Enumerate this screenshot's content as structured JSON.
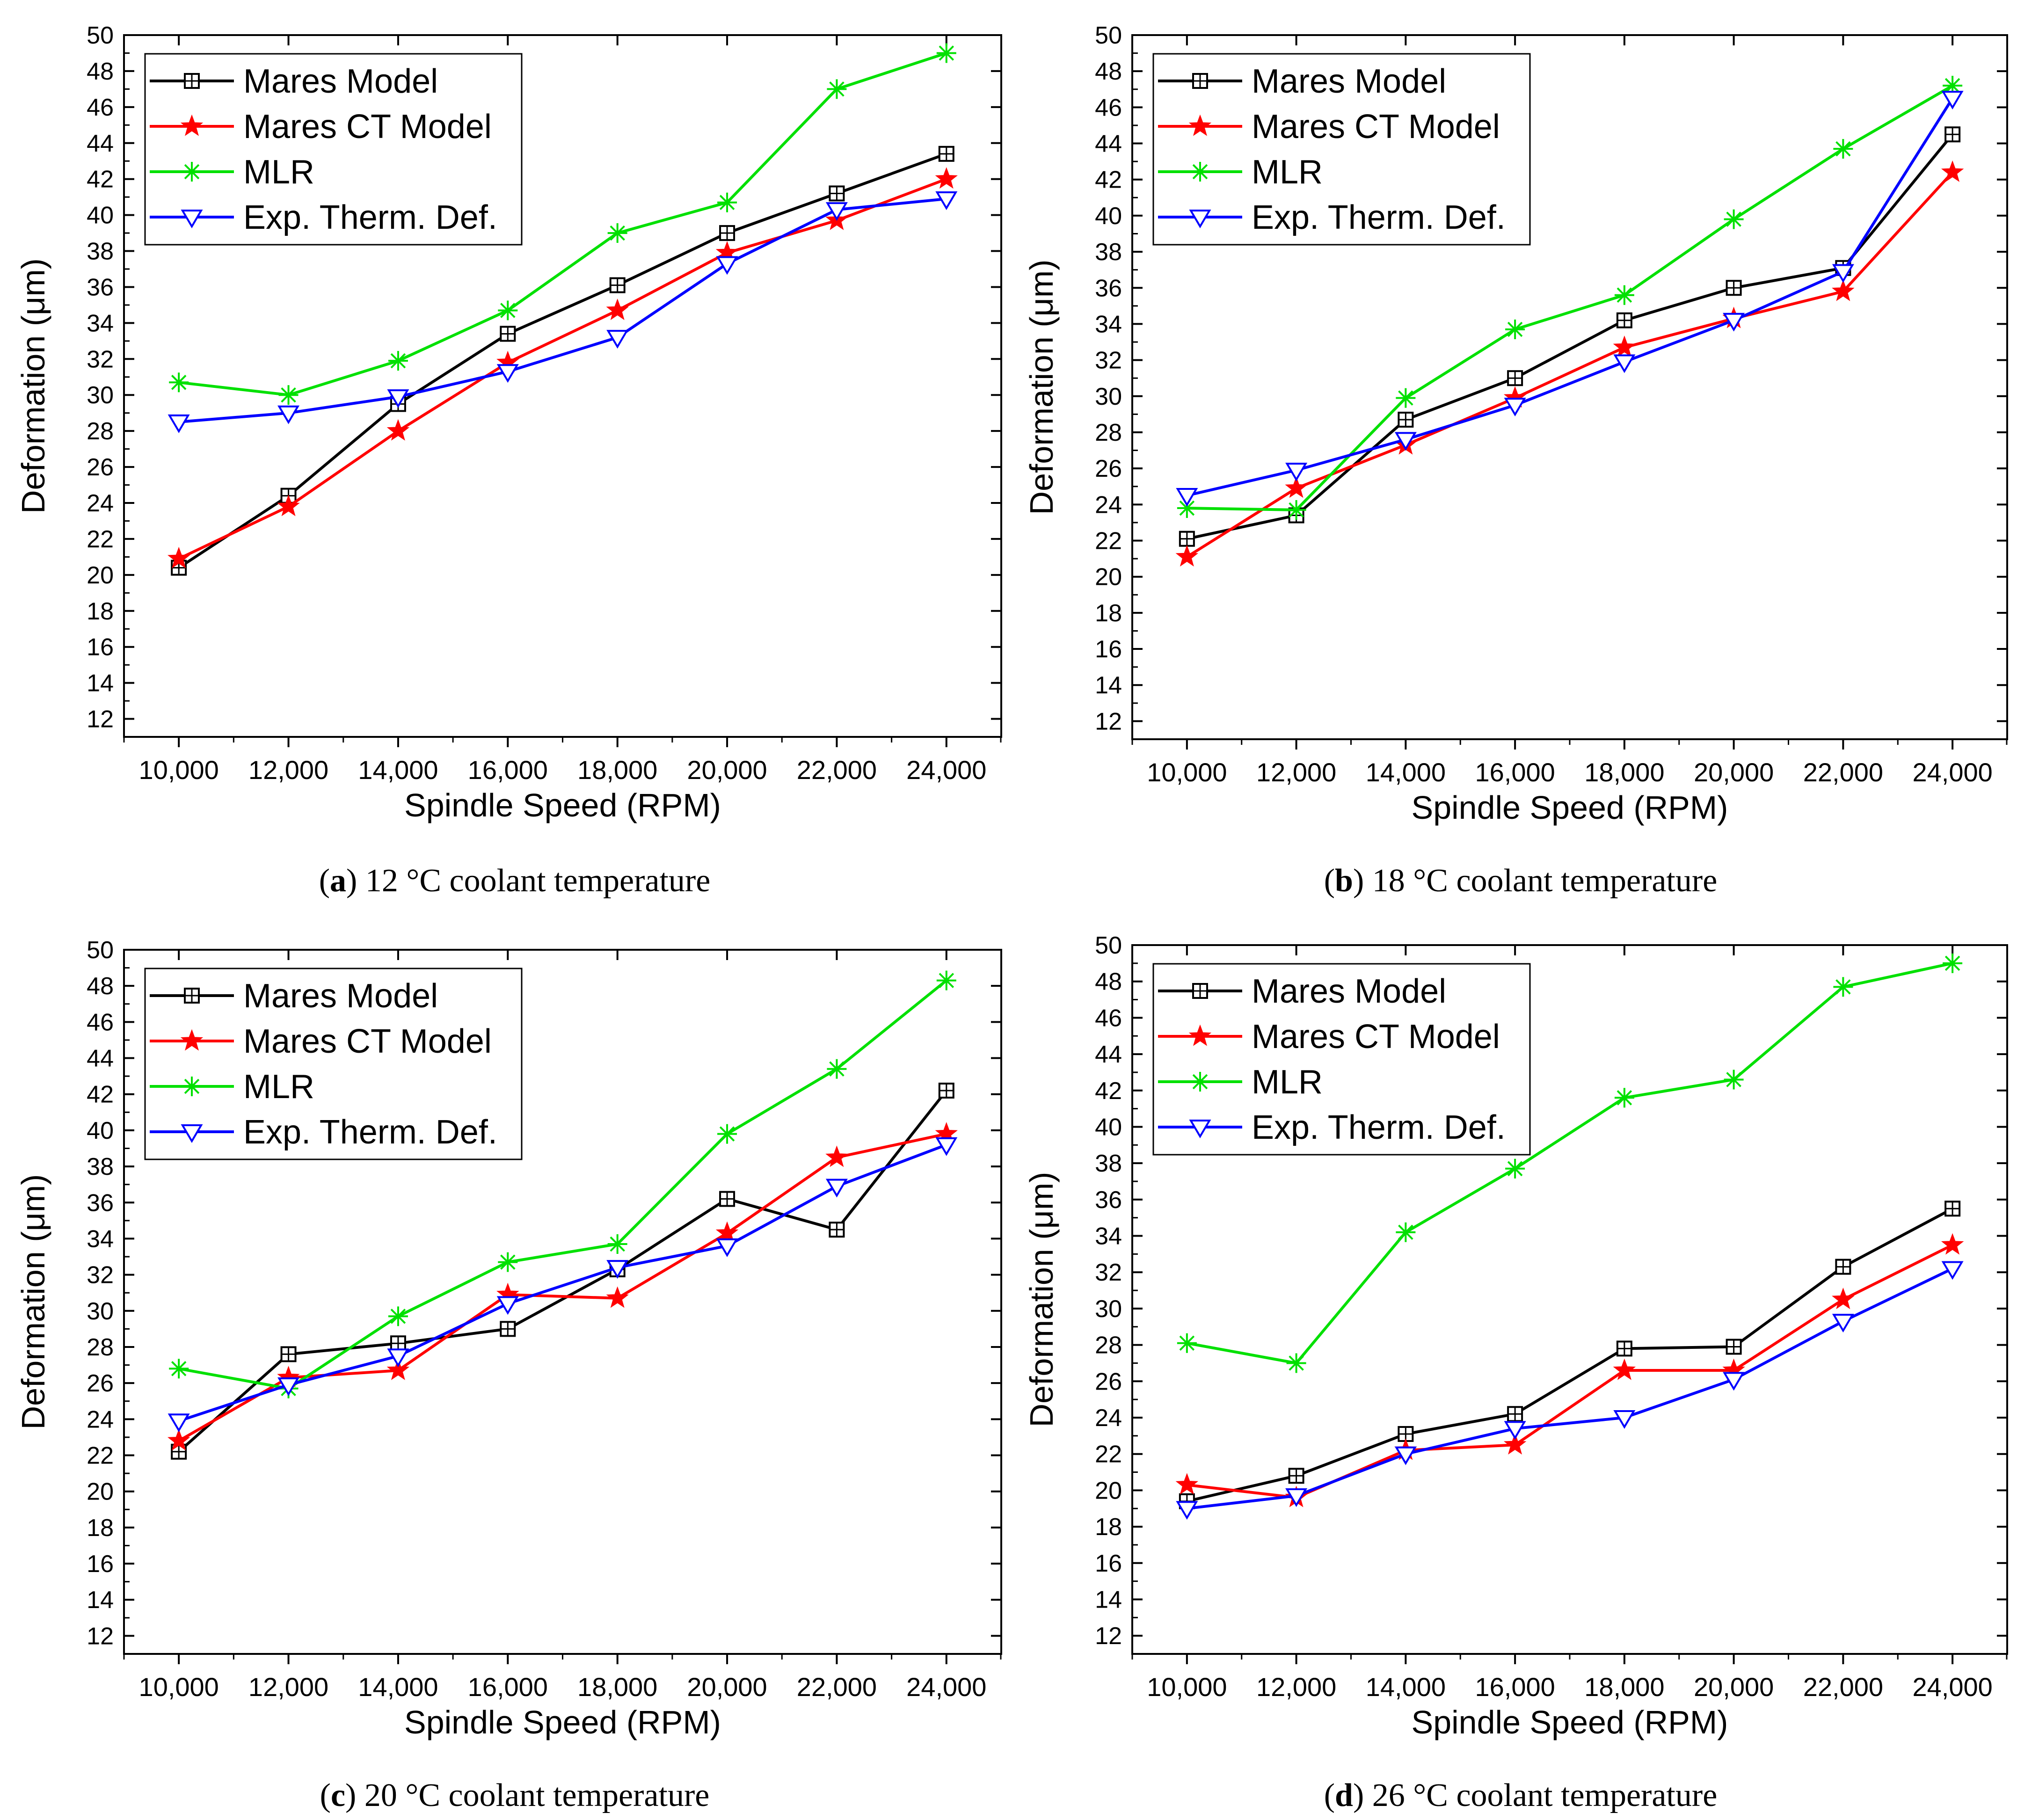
{
  "chart_data": [
    {
      "id": "a",
      "type": "line",
      "caption_label": "a",
      "caption_text": " 12 °C coolant temperature",
      "xlabel": "Spindle Speed (RPM)",
      "ylabel": "Deformation (μm)",
      "categories": [
        "10,000",
        "12,000",
        "14,000",
        "16,000",
        "18,000",
        "20,000",
        "22,000",
        "24,000"
      ],
      "x": [
        10000,
        12000,
        14000,
        16000,
        18000,
        20000,
        22000,
        24000
      ],
      "xlim": [
        9000,
        25000
      ],
      "ylim": [
        11,
        50
      ],
      "yticks": [
        "12",
        "14",
        "16",
        "18",
        "20",
        "22",
        "24",
        "26",
        "28",
        "30",
        "32",
        "34",
        "36",
        "38",
        "40",
        "42",
        "44",
        "46",
        "48",
        "50"
      ],
      "legend_location": "top-left",
      "series": [
        {
          "name": "Mares Model",
          "marker": "boxplus",
          "color": "#000000",
          "values": [
            20.4,
            24.4,
            29.5,
            33.4,
            36.1,
            39.0,
            41.2,
            43.4
          ]
        },
        {
          "name": "Mares CT Model",
          "marker": "star",
          "color": "#ff0000",
          "values": [
            20.9,
            23.8,
            28.0,
            31.8,
            34.7,
            37.9,
            39.7,
            42.0
          ]
        },
        {
          "name": "MLR",
          "marker": "asterisk",
          "color": "#00e000",
          "values": [
            30.7,
            30.0,
            31.9,
            34.7,
            39.0,
            40.7,
            47.0,
            49.0
          ]
        },
        {
          "name": "Exp. Therm. Def.",
          "marker": "triangle-down",
          "color": "#0000ff",
          "values": [
            28.5,
            29.0,
            29.9,
            31.3,
            33.2,
            37.3,
            40.3,
            40.9
          ]
        }
      ]
    },
    {
      "id": "b",
      "type": "line",
      "caption_label": "b",
      "caption_text": " 18 °C coolant temperature",
      "xlabel": "Spindle Speed (RPM)",
      "ylabel": "Deformation (μm)",
      "categories": [
        "10,000",
        "12,000",
        "14,000",
        "16,000",
        "18,000",
        "20,000",
        "22,000",
        "24,000"
      ],
      "x": [
        10000,
        12000,
        14000,
        16000,
        18000,
        20000,
        22000,
        24000
      ],
      "xlim": [
        9000,
        25000
      ],
      "ylim": [
        11,
        50
      ],
      "yticks": [
        "12",
        "14",
        "16",
        "18",
        "20",
        "22",
        "24",
        "26",
        "28",
        "30",
        "32",
        "34",
        "36",
        "38",
        "40",
        "42",
        "44",
        "46",
        "48",
        "50"
      ],
      "legend_location": "top-left",
      "series": [
        {
          "name": "Mares Model",
          "marker": "boxplus",
          "color": "#000000",
          "values": [
            22.1,
            23.4,
            28.7,
            31.0,
            34.2,
            36.0,
            37.1,
            44.5
          ]
        },
        {
          "name": "Mares CT Model",
          "marker": "star",
          "color": "#ff0000",
          "values": [
            21.1,
            24.9,
            27.3,
            29.9,
            32.7,
            34.3,
            35.8,
            42.4
          ]
        },
        {
          "name": "MLR",
          "marker": "asterisk",
          "color": "#00e000",
          "values": [
            23.8,
            23.7,
            29.9,
            33.7,
            35.6,
            39.8,
            43.7,
            47.2
          ]
        },
        {
          "name": "Exp. Therm. Def.",
          "marker": "triangle-down",
          "color": "#0000ff",
          "values": [
            24.5,
            25.9,
            27.6,
            29.5,
            31.9,
            34.2,
            36.9,
            46.5
          ]
        }
      ]
    },
    {
      "id": "c",
      "type": "line",
      "caption_label": "c",
      "caption_text": " 20 °C coolant temperature",
      "xlabel": "Spindle Speed (RPM)",
      "ylabel": "Deformation (μm)",
      "categories": [
        "10,000",
        "12,000",
        "14,000",
        "16,000",
        "18,000",
        "20,000",
        "22,000",
        "24,000"
      ],
      "x": [
        10000,
        12000,
        14000,
        16000,
        18000,
        20000,
        22000,
        24000
      ],
      "xlim": [
        9000,
        25000
      ],
      "ylim": [
        11,
        50
      ],
      "yticks": [
        "12",
        "14",
        "16",
        "18",
        "20",
        "22",
        "24",
        "26",
        "28",
        "30",
        "32",
        "34",
        "36",
        "38",
        "40",
        "42",
        "44",
        "46",
        "48",
        "50"
      ],
      "legend_location": "top-left",
      "series": [
        {
          "name": "Mares Model",
          "marker": "boxplus",
          "color": "#000000",
          "values": [
            22.2,
            27.6,
            28.2,
            29.0,
            32.3,
            36.2,
            34.5,
            42.2
          ]
        },
        {
          "name": "Mares CT Model",
          "marker": "star",
          "color": "#ff0000",
          "values": [
            22.8,
            26.3,
            26.7,
            30.9,
            30.7,
            34.3,
            38.5,
            39.8
          ]
        },
        {
          "name": "MLR",
          "marker": "asterisk",
          "color": "#00e000",
          "values": [
            26.8,
            25.7,
            29.7,
            32.7,
            33.7,
            39.8,
            43.4,
            48.3
          ]
        },
        {
          "name": "Exp. Therm. Def.",
          "marker": "triangle-down",
          "color": "#0000ff",
          "values": [
            23.9,
            25.9,
            27.5,
            30.4,
            32.4,
            33.6,
            36.9,
            39.2
          ]
        }
      ]
    },
    {
      "id": "d",
      "type": "line",
      "caption_label": "d",
      "caption_text": " 26 °C coolant temperature",
      "xlabel": "Spindle Speed (RPM)",
      "ylabel": "Deformation (μm)",
      "categories": [
        "10,000",
        "12,000",
        "14,000",
        "16,000",
        "18,000",
        "20,000",
        "22,000",
        "24,000"
      ],
      "x": [
        10000,
        12000,
        14000,
        16000,
        18000,
        20000,
        22000,
        24000
      ],
      "xlim": [
        9000,
        25000
      ],
      "ylim": [
        11,
        50
      ],
      "yticks": [
        "12",
        "14",
        "16",
        "18",
        "20",
        "22",
        "24",
        "26",
        "28",
        "30",
        "32",
        "34",
        "36",
        "38",
        "40",
        "42",
        "44",
        "46",
        "48",
        "50"
      ],
      "legend_location": "top-left",
      "series": [
        {
          "name": "Mares Model",
          "marker": "boxplus",
          "color": "#000000",
          "values": [
            19.4,
            20.8,
            23.1,
            24.2,
            27.8,
            27.9,
            32.3,
            35.5
          ]
        },
        {
          "name": "Mares CT Model",
          "marker": "star",
          "color": "#ff0000",
          "values": [
            20.3,
            19.6,
            22.2,
            22.5,
            26.6,
            26.6,
            30.5,
            33.5
          ]
        },
        {
          "name": "MLR",
          "marker": "asterisk",
          "color": "#00e000",
          "values": [
            28.1,
            27.0,
            34.2,
            37.7,
            41.6,
            42.6,
            47.7,
            49.0
          ]
        },
        {
          "name": "Exp. Therm. Def.",
          "marker": "triangle-down",
          "color": "#0000ff",
          "values": [
            19.0,
            19.7,
            22.0,
            23.4,
            24.0,
            26.1,
            29.3,
            32.2
          ]
        }
      ]
    }
  ]
}
